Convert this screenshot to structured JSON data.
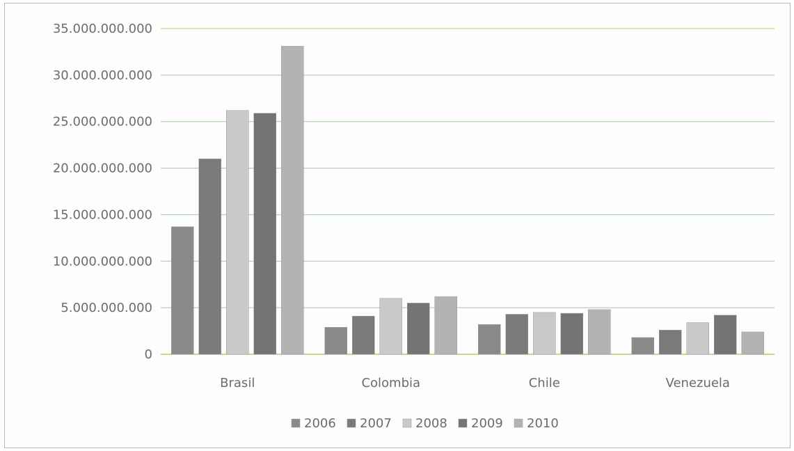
{
  "chart_data": {
    "type": "bar",
    "title": "",
    "xlabel": "",
    "ylabel": "",
    "categories": [
      "Brasil",
      "Colombia",
      "Chile",
      "Venezuela"
    ],
    "ylim": [
      0,
      35000000000
    ],
    "y_ticks": [
      {
        "value": 0,
        "label": "0"
      },
      {
        "value": 5000000000,
        "label": "5.000.000.000"
      },
      {
        "value": 10000000000,
        "label": "10.000.000.000"
      },
      {
        "value": 15000000000,
        "label": "15.000.000.000"
      },
      {
        "value": 20000000000,
        "label": "20.000.000.000"
      },
      {
        "value": 25000000000,
        "label": "25.000.000.000"
      },
      {
        "value": 30000000000,
        "label": "30.000.000.000"
      },
      {
        "value": 35000000000,
        "label": "35.000.000.000"
      }
    ],
    "grid": true,
    "legend_position": "bottom",
    "series": [
      {
        "name": "2006",
        "color": "#8a8a8a",
        "values": [
          13700000000,
          2900000000,
          3200000000,
          1800000000
        ]
      },
      {
        "name": "2007",
        "color": "#7a7a7a",
        "values": [
          21000000000,
          4100000000,
          4300000000,
          2600000000
        ]
      },
      {
        "name": "2008",
        "color": "#c9c9c9",
        "values": [
          26200000000,
          6000000000,
          4500000000,
          3400000000
        ]
      },
      {
        "name": "2009",
        "color": "#747474",
        "values": [
          25900000000,
          5500000000,
          4400000000,
          4200000000
        ]
      },
      {
        "name": "2010",
        "color": "#b3b3b3",
        "values": [
          33100000000,
          6200000000,
          4800000000,
          2400000000
        ]
      }
    ],
    "colors": {
      "grid_top": "#c8c46a",
      "grid": "#a7c6a4",
      "axis": "#c8c46a"
    }
  }
}
